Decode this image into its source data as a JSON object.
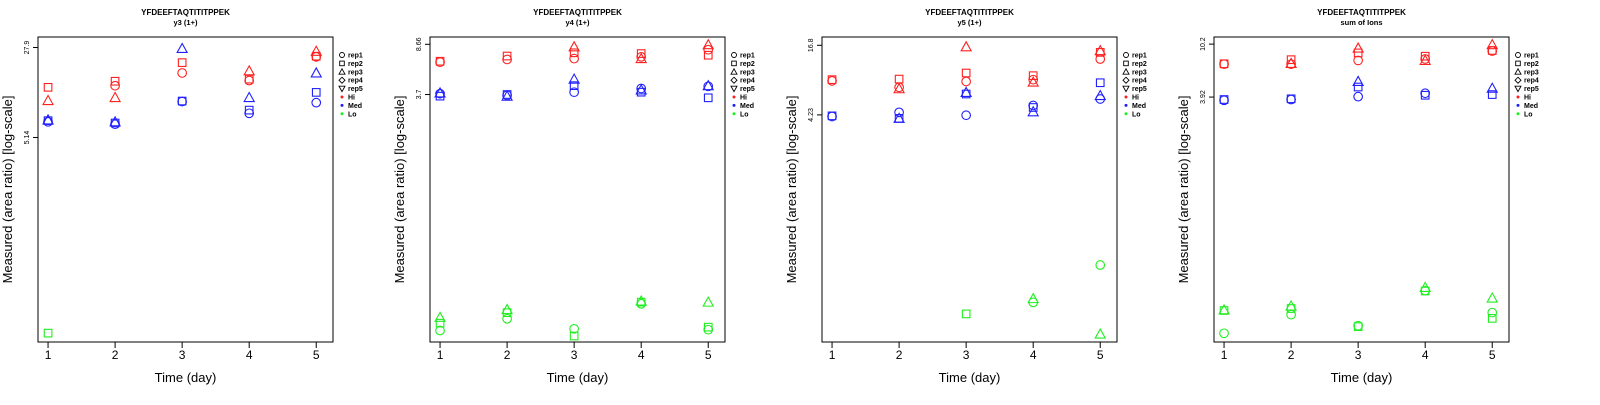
{
  "colors": {
    "Hi": "#ff2020",
    "Med": "#2020ff",
    "Lo": "#20ee20"
  },
  "marker_shapes": {
    "rep1": "circle",
    "rep2": "square",
    "rep3": "triangle-up",
    "rep4": "diamond",
    "rep5": "triangle-down"
  },
  "legend": {
    "items": [
      {
        "label": "rep1",
        "symbol": "circle"
      },
      {
        "label": "rep2",
        "symbol": "square"
      },
      {
        "label": "rep3",
        "symbol": "triangle-up"
      },
      {
        "label": "rep4",
        "symbol": "diamond"
      },
      {
        "label": "rep5",
        "symbol": "triangle-down"
      },
      {
        "label": "Hi",
        "symbol": "dot",
        "group": "Hi"
      },
      {
        "label": "Med",
        "symbol": "dot",
        "group": "Med"
      },
      {
        "label": "Lo",
        "symbol": "dot",
        "group": "Lo"
      }
    ]
  },
  "chart_data": [
    {
      "type": "scatter",
      "title": "YFDEEFTAQTITITPPEK",
      "subtitle": "y3 (1+)",
      "xlabel": "Time (day)",
      "ylabel": "Measured (area ratio) [log-scale]",
      "y_scale": "log",
      "ylim": [
        0.11,
        34
      ],
      "xlim": [
        0.85,
        5.25
      ],
      "x_ticks": [
        1,
        2,
        3,
        4,
        5
      ],
      "y_ticks": [
        5.14,
        27.9
      ],
      "y_tick_labels": [
        "5.14",
        "27.9"
      ],
      "grid": false,
      "legend_position": "right",
      "points": [
        {
          "x": 1,
          "y": 13.2,
          "rep": "rep2",
          "group": "Hi"
        },
        {
          "x": 1,
          "y": 10.3,
          "rep": "rep3",
          "group": "Hi"
        },
        {
          "x": 2,
          "y": 14.8,
          "rep": "rep2",
          "group": "Hi"
        },
        {
          "x": 2,
          "y": 13.6,
          "rep": "rep1",
          "group": "Hi"
        },
        {
          "x": 2,
          "y": 10.9,
          "rep": "rep3",
          "group": "Hi"
        },
        {
          "x": 3,
          "y": 21.0,
          "rep": "rep2",
          "group": "Hi"
        },
        {
          "x": 3,
          "y": 17.3,
          "rep": "rep1",
          "group": "Hi"
        },
        {
          "x": 4,
          "y": 15.4,
          "rep": "rep2",
          "group": "Hi"
        },
        {
          "x": 4,
          "y": 15.0,
          "rep": "rep1",
          "group": "Hi"
        },
        {
          "x": 4,
          "y": 18.0,
          "rep": "rep3",
          "group": "Hi"
        },
        {
          "x": 5,
          "y": 26.0,
          "rep": "rep3",
          "group": "Hi"
        },
        {
          "x": 5,
          "y": 23.7,
          "rep": "rep2",
          "group": "Hi"
        },
        {
          "x": 5,
          "y": 23.4,
          "rep": "rep1",
          "group": "Hi"
        },
        {
          "x": 1,
          "y": 7.05,
          "rep": "rep2",
          "group": "Med"
        },
        {
          "x": 1,
          "y": 7.15,
          "rep": "rep3",
          "group": "Med"
        },
        {
          "x": 1,
          "y": 6.9,
          "rep": "rep1",
          "group": "Med"
        },
        {
          "x": 2,
          "y": 6.75,
          "rep": "rep2",
          "group": "Med"
        },
        {
          "x": 2,
          "y": 6.9,
          "rep": "rep3",
          "group": "Med"
        },
        {
          "x": 2,
          "y": 6.6,
          "rep": "rep1",
          "group": "Med"
        },
        {
          "x": 3,
          "y": 27.4,
          "rep": "rep3",
          "group": "Med"
        },
        {
          "x": 3,
          "y": 10.2,
          "rep": "rep2",
          "group": "Med"
        },
        {
          "x": 3,
          "y": 10.1,
          "rep": "rep1",
          "group": "Med"
        },
        {
          "x": 4,
          "y": 8.6,
          "rep": "rep2",
          "group": "Med"
        },
        {
          "x": 4,
          "y": 8.1,
          "rep": "rep1",
          "group": "Med"
        },
        {
          "x": 4,
          "y": 10.9,
          "rep": "rep3",
          "group": "Med"
        },
        {
          "x": 5,
          "y": 17.3,
          "rep": "rep3",
          "group": "Med"
        },
        {
          "x": 5,
          "y": 12.0,
          "rep": "rep2",
          "group": "Med"
        },
        {
          "x": 5,
          "y": 9.9,
          "rep": "rep1",
          "group": "Med"
        },
        {
          "x": 1,
          "y": 0.13,
          "rep": "rep2",
          "group": "Lo"
        }
      ]
    },
    {
      "type": "scatter",
      "title": "YFDEEFTAQTITITPPEK",
      "subtitle": "y4 (1+)",
      "xlabel": "Time (day)",
      "ylabel": "Measured (area ratio) [log-scale]",
      "y_scale": "log",
      "ylim": [
        0.056,
        9.8
      ],
      "xlim": [
        0.85,
        5.25
      ],
      "x_ticks": [
        1,
        2,
        3,
        4,
        5
      ],
      "y_ticks": [
        3.7,
        8.66
      ],
      "y_tick_labels": [
        "3.7",
        "8.66"
      ],
      "grid": false,
      "legend_position": "right",
      "points": [
        {
          "x": 1,
          "y": 6.4,
          "rep": "rep1",
          "group": "Hi"
        },
        {
          "x": 1,
          "y": 6.5,
          "rep": "rep2",
          "group": "Hi"
        },
        {
          "x": 2,
          "y": 6.7,
          "rep": "rep1",
          "group": "Hi"
        },
        {
          "x": 2,
          "y": 7.1,
          "rep": "rep2",
          "group": "Hi"
        },
        {
          "x": 3,
          "y": 8.3,
          "rep": "rep3",
          "group": "Hi"
        },
        {
          "x": 3,
          "y": 7.5,
          "rep": "rep2",
          "group": "Hi"
        },
        {
          "x": 3,
          "y": 6.8,
          "rep": "rep1",
          "group": "Hi"
        },
        {
          "x": 4,
          "y": 7.4,
          "rep": "rep2",
          "group": "Hi"
        },
        {
          "x": 4,
          "y": 7.0,
          "rep": "rep1",
          "group": "Hi"
        },
        {
          "x": 4,
          "y": 6.8,
          "rep": "rep3",
          "group": "Hi"
        },
        {
          "x": 5,
          "y": 8.6,
          "rep": "rep3",
          "group": "Hi"
        },
        {
          "x": 5,
          "y": 7.9,
          "rep": "rep1",
          "group": "Hi"
        },
        {
          "x": 5,
          "y": 7.2,
          "rep": "rep2",
          "group": "Hi"
        },
        {
          "x": 1,
          "y": 3.75,
          "rep": "rep1",
          "group": "Med"
        },
        {
          "x": 1,
          "y": 3.6,
          "rep": "rep2",
          "group": "Med"
        },
        {
          "x": 1,
          "y": 3.8,
          "rep": "rep3",
          "group": "Med"
        },
        {
          "x": 2,
          "y": 3.65,
          "rep": "rep1",
          "group": "Med"
        },
        {
          "x": 2,
          "y": 3.7,
          "rep": "rep2",
          "group": "Med"
        },
        {
          "x": 2,
          "y": 3.6,
          "rep": "rep3",
          "group": "Med"
        },
        {
          "x": 3,
          "y": 4.8,
          "rep": "rep3",
          "group": "Med"
        },
        {
          "x": 3,
          "y": 4.3,
          "rep": "rep2",
          "group": "Med"
        },
        {
          "x": 3,
          "y": 3.85,
          "rep": "rep1",
          "group": "Med"
        },
        {
          "x": 4,
          "y": 4.1,
          "rep": "rep1",
          "group": "Med"
        },
        {
          "x": 4,
          "y": 3.85,
          "rep": "rep2",
          "group": "Med"
        },
        {
          "x": 4,
          "y": 4.0,
          "rep": "rep3",
          "group": "Med"
        },
        {
          "x": 5,
          "y": 4.25,
          "rep": "rep1",
          "group": "Med"
        },
        {
          "x": 5,
          "y": 4.3,
          "rep": "rep3",
          "group": "Med"
        },
        {
          "x": 5,
          "y": 3.5,
          "rep": "rep2",
          "group": "Med"
        },
        {
          "x": 1,
          "y": 0.085,
          "rep": "rep3",
          "group": "Lo"
        },
        {
          "x": 1,
          "y": 0.077,
          "rep": "rep2",
          "group": "Lo"
        },
        {
          "x": 1,
          "y": 0.068,
          "rep": "rep1",
          "group": "Lo"
        },
        {
          "x": 2,
          "y": 0.097,
          "rep": "rep3",
          "group": "Lo"
        },
        {
          "x": 2,
          "y": 0.092,
          "rep": "rep2",
          "group": "Lo"
        },
        {
          "x": 2,
          "y": 0.083,
          "rep": "rep1",
          "group": "Lo"
        },
        {
          "x": 3,
          "y": 0.07,
          "rep": "rep1",
          "group": "Lo"
        },
        {
          "x": 3,
          "y": 0.062,
          "rep": "rep2",
          "group": "Lo"
        },
        {
          "x": 4,
          "y": 0.11,
          "rep": "rep2",
          "group": "Lo"
        },
        {
          "x": 4,
          "y": 0.107,
          "rep": "rep1",
          "group": "Lo"
        },
        {
          "x": 4,
          "y": 0.112,
          "rep": "rep3",
          "group": "Lo"
        },
        {
          "x": 5,
          "y": 0.11,
          "rep": "rep3",
          "group": "Lo"
        },
        {
          "x": 5,
          "y": 0.072,
          "rep": "rep2",
          "group": "Lo"
        },
        {
          "x": 5,
          "y": 0.069,
          "rep": "rep1",
          "group": "Lo"
        }
      ]
    },
    {
      "type": "scatter",
      "title": "YFDEEFTAQTITITPPEK",
      "subtitle": "y5 (1+)",
      "xlabel": "Time (day)",
      "ylabel": "Measured (area ratio) [log-scale]",
      "y_scale": "log",
      "ylim": [
        0.047,
        19.8
      ],
      "xlim": [
        0.85,
        5.25
      ],
      "x_ticks": [
        1,
        2,
        3,
        4,
        5
      ],
      "y_ticks": [
        4.23,
        16.8
      ],
      "y_tick_labels": [
        "4.23",
        "16.8"
      ],
      "grid": false,
      "legend_position": "right",
      "points": [
        {
          "x": 1,
          "y": 8.3,
          "rep": "rep1",
          "group": "Hi"
        },
        {
          "x": 1,
          "y": 8.5,
          "rep": "rep2",
          "group": "Hi"
        },
        {
          "x": 2,
          "y": 8.6,
          "rep": "rep2",
          "group": "Hi"
        },
        {
          "x": 2,
          "y": 7.3,
          "rep": "rep1",
          "group": "Hi"
        },
        {
          "x": 2,
          "y": 7.1,
          "rep": "rep3",
          "group": "Hi"
        },
        {
          "x": 3,
          "y": 16.3,
          "rep": "rep3",
          "group": "Hi"
        },
        {
          "x": 3,
          "y": 9.7,
          "rep": "rep2",
          "group": "Hi"
        },
        {
          "x": 3,
          "y": 8.2,
          "rep": "rep1",
          "group": "Hi"
        },
        {
          "x": 4,
          "y": 9.2,
          "rep": "rep2",
          "group": "Hi"
        },
        {
          "x": 4,
          "y": 8.5,
          "rep": "rep1",
          "group": "Hi"
        },
        {
          "x": 4,
          "y": 8.1,
          "rep": "rep3",
          "group": "Hi"
        },
        {
          "x": 5,
          "y": 15.1,
          "rep": "rep3",
          "group": "Hi"
        },
        {
          "x": 5,
          "y": 14.6,
          "rep": "rep2",
          "group": "Hi"
        },
        {
          "x": 5,
          "y": 12.8,
          "rep": "rep1",
          "group": "Hi"
        },
        {
          "x": 1,
          "y": 4.1,
          "rep": "rep1",
          "group": "Med"
        },
        {
          "x": 1,
          "y": 4.15,
          "rep": "rep2",
          "group": "Med"
        },
        {
          "x": 2,
          "y": 4.45,
          "rep": "rep1",
          "group": "Med"
        },
        {
          "x": 2,
          "y": 3.95,
          "rep": "rep2",
          "group": "Med"
        },
        {
          "x": 2,
          "y": 3.95,
          "rep": "rep3",
          "group": "Med"
        },
        {
          "x": 3,
          "y": 4.2,
          "rep": "rep1",
          "group": "Med"
        },
        {
          "x": 3,
          "y": 6.4,
          "rep": "rep2",
          "group": "Med"
        },
        {
          "x": 3,
          "y": 6.6,
          "rep": "rep3",
          "group": "Med"
        },
        {
          "x": 4,
          "y": 5.1,
          "rep": "rep1",
          "group": "Med"
        },
        {
          "x": 4,
          "y": 4.9,
          "rep": "rep2",
          "group": "Med"
        },
        {
          "x": 4,
          "y": 4.5,
          "rep": "rep3",
          "group": "Med"
        },
        {
          "x": 5,
          "y": 8.0,
          "rep": "rep2",
          "group": "Med"
        },
        {
          "x": 5,
          "y": 6.2,
          "rep": "rep3",
          "group": "Med"
        },
        {
          "x": 5,
          "y": 5.8,
          "rep": "rep1",
          "group": "Med"
        },
        {
          "x": 3,
          "y": 0.082,
          "rep": "rep2",
          "group": "Lo"
        },
        {
          "x": 4,
          "y": 0.111,
          "rep": "rep3",
          "group": "Lo"
        },
        {
          "x": 4,
          "y": 0.103,
          "rep": "rep1",
          "group": "Lo"
        },
        {
          "x": 5,
          "y": 0.216,
          "rep": "rep1",
          "group": "Lo"
        },
        {
          "x": 5,
          "y": 0.055,
          "rep": "rep3",
          "group": "Lo"
        }
      ]
    },
    {
      "type": "scatter",
      "title": "YFDEEFTAQTITITPPEK",
      "subtitle": "sum of Ions",
      "xlabel": "Time (day)",
      "ylabel": "Measured (area ratio) [log-scale]",
      "y_scale": "log",
      "ylim": [
        0.047,
        11.6
      ],
      "xlim": [
        0.85,
        5.25
      ],
      "x_ticks": [
        1,
        2,
        3,
        4,
        5
      ],
      "y_ticks": [
        3.92,
        10.2
      ],
      "y_tick_labels": [
        "3.92",
        "10.2"
      ],
      "grid": false,
      "legend_position": "right",
      "points": [
        {
          "x": 1,
          "y": 7.1,
          "rep": "rep1",
          "group": "Hi"
        },
        {
          "x": 1,
          "y": 7.15,
          "rep": "rep2",
          "group": "Hi"
        },
        {
          "x": 2,
          "y": 7.7,
          "rep": "rep2",
          "group": "Hi"
        },
        {
          "x": 2,
          "y": 7.1,
          "rep": "rep1",
          "group": "Hi"
        },
        {
          "x": 2,
          "y": 7.2,
          "rep": "rep3",
          "group": "Hi"
        },
        {
          "x": 3,
          "y": 9.5,
          "rep": "rep3",
          "group": "Hi"
        },
        {
          "x": 3,
          "y": 8.7,
          "rep": "rep2",
          "group": "Hi"
        },
        {
          "x": 3,
          "y": 7.6,
          "rep": "rep1",
          "group": "Hi"
        },
        {
          "x": 4,
          "y": 8.2,
          "rep": "rep2",
          "group": "Hi"
        },
        {
          "x": 4,
          "y": 7.8,
          "rep": "rep1",
          "group": "Hi"
        },
        {
          "x": 4,
          "y": 7.6,
          "rep": "rep3",
          "group": "Hi"
        },
        {
          "x": 5,
          "y": 10.1,
          "rep": "rep3",
          "group": "Hi"
        },
        {
          "x": 5,
          "y": 9.1,
          "rep": "rep2",
          "group": "Hi"
        },
        {
          "x": 5,
          "y": 9.0,
          "rep": "rep1",
          "group": "Hi"
        },
        {
          "x": 1,
          "y": 3.7,
          "rep": "rep1",
          "group": "Med"
        },
        {
          "x": 1,
          "y": 3.75,
          "rep": "rep2",
          "group": "Med"
        },
        {
          "x": 2,
          "y": 3.75,
          "rep": "rep1",
          "group": "Med"
        },
        {
          "x": 2,
          "y": 3.8,
          "rep": "rep2",
          "group": "Med"
        },
        {
          "x": 3,
          "y": 5.2,
          "rep": "rep3",
          "group": "Med"
        },
        {
          "x": 3,
          "y": 4.7,
          "rep": "rep2",
          "group": "Med"
        },
        {
          "x": 3,
          "y": 3.95,
          "rep": "rep1",
          "group": "Med"
        },
        {
          "x": 4,
          "y": 4.2,
          "rep": "rep1",
          "group": "Med"
        },
        {
          "x": 4,
          "y": 4.05,
          "rep": "rep2",
          "group": "Med"
        },
        {
          "x": 5,
          "y": 4.6,
          "rep": "rep3",
          "group": "Med"
        },
        {
          "x": 5,
          "y": 4.1,
          "rep": "rep2",
          "group": "Med"
        },
        {
          "x": 1,
          "y": 0.083,
          "rep": "rep2",
          "group": "Lo"
        },
        {
          "x": 1,
          "y": 0.084,
          "rep": "rep3",
          "group": "Lo"
        },
        {
          "x": 1,
          "y": 0.055,
          "rep": "rep1",
          "group": "Lo"
        },
        {
          "x": 2,
          "y": 0.09,
          "rep": "rep3",
          "group": "Lo"
        },
        {
          "x": 2,
          "y": 0.086,
          "rep": "rep2",
          "group": "Lo"
        },
        {
          "x": 2,
          "y": 0.077,
          "rep": "rep1",
          "group": "Lo"
        },
        {
          "x": 3,
          "y": 0.063,
          "rep": "rep1",
          "group": "Lo"
        },
        {
          "x": 3,
          "y": 0.062,
          "rep": "rep2",
          "group": "Lo"
        },
        {
          "x": 4,
          "y": 0.126,
          "rep": "rep3",
          "group": "Lo"
        },
        {
          "x": 4,
          "y": 0.118,
          "rep": "rep2",
          "group": "Lo"
        },
        {
          "x": 4,
          "y": 0.119,
          "rep": "rep1",
          "group": "Lo"
        },
        {
          "x": 5,
          "y": 0.104,
          "rep": "rep3",
          "group": "Lo"
        },
        {
          "x": 5,
          "y": 0.08,
          "rep": "rep1",
          "group": "Lo"
        },
        {
          "x": 5,
          "y": 0.072,
          "rep": "rep2",
          "group": "Lo"
        }
      ]
    }
  ]
}
